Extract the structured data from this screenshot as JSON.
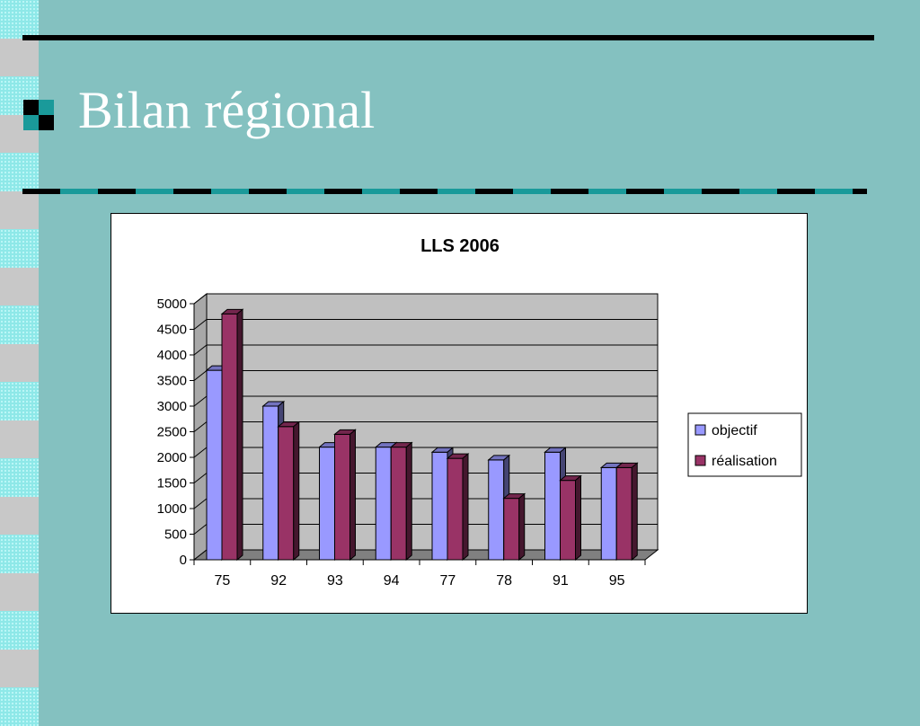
{
  "slide": {
    "title": "Bilan régional"
  },
  "colors": {
    "background": "#84c1c0",
    "objectif": "#9999ff",
    "realisation": "#993366",
    "plot_wall": "#c0c0c0",
    "floor": "#808080"
  },
  "chart_data": {
    "type": "bar",
    "title": "LLS 2006",
    "xlabel": "",
    "ylabel": "",
    "categories": [
      "75",
      "92",
      "93",
      "94",
      "77",
      "78",
      "91",
      "95"
    ],
    "series": [
      {
        "name": "objectif",
        "values": [
          3700,
          3000,
          2200,
          2200,
          2100,
          1950,
          2100,
          1800
        ]
      },
      {
        "name": "réalisation",
        "values": [
          4800,
          2600,
          2450,
          2200,
          1980,
          1200,
          1550,
          1800
        ]
      }
    ],
    "ylim": [
      0,
      5000
    ],
    "yticks": [
      "0",
      "500",
      "1000",
      "1500",
      "2000",
      "2500",
      "3000",
      "3500",
      "4000",
      "4500",
      "5000"
    ],
    "grid": true,
    "legend_position": "right",
    "style": "3d-clustered"
  }
}
